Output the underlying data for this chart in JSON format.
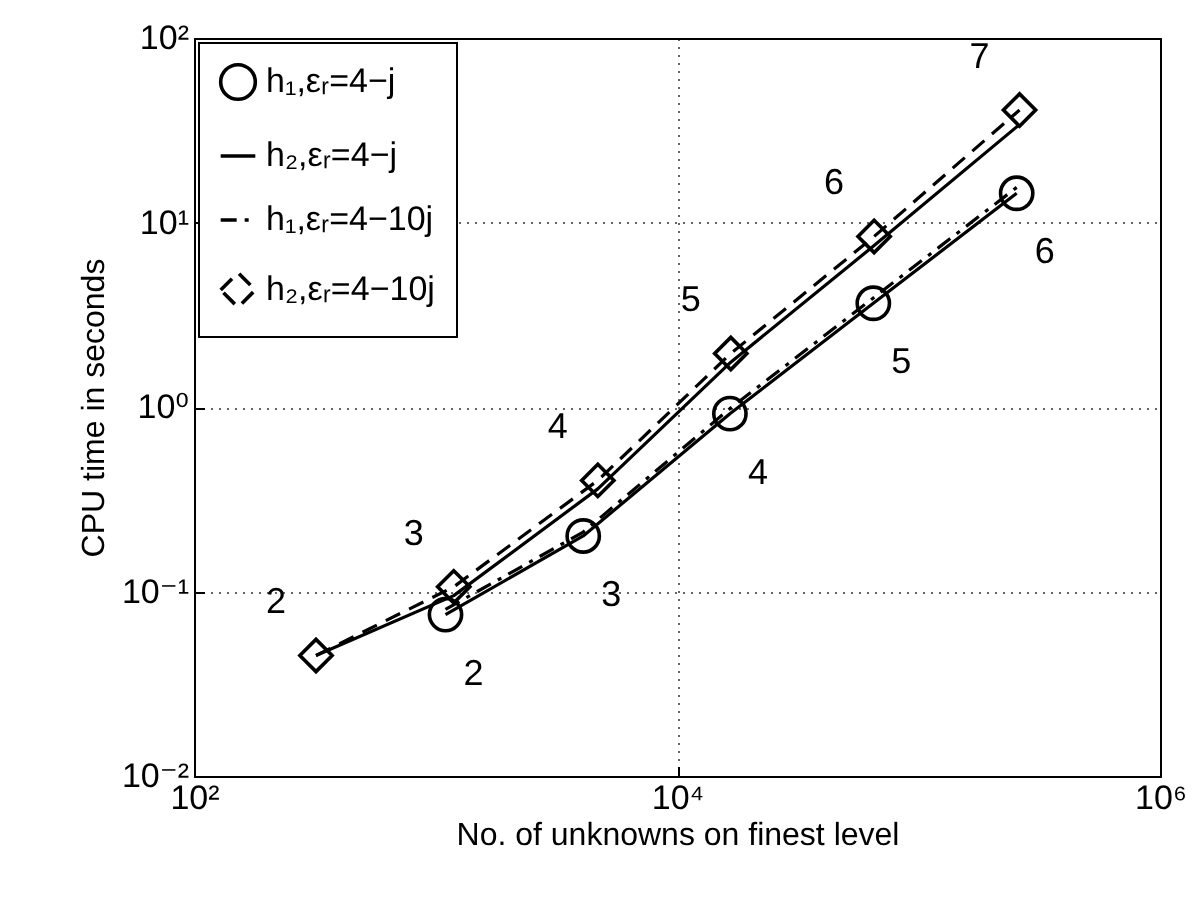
{
  "chart_data": {
    "type": "line",
    "xlabel": "No. of unknowns on finest level",
    "ylabel": "CPU time in seconds",
    "log": "xy",
    "grid": true,
    "legend": "top left",
    "xlim": [
      100,
      1000000
    ],
    "ylim": [
      0.01,
      100
    ],
    "xticks": [
      {
        "value": 100,
        "label": "10²"
      },
      {
        "value": 10000,
        "label": "10⁴"
      },
      {
        "value": 1000000,
        "label": "10⁶"
      }
    ],
    "yticks": [
      {
        "value": 0.01,
        "label": "10⁻²"
      },
      {
        "value": 0.1,
        "label": "10⁻¹"
      },
      {
        "value": 1,
        "label": "10⁰"
      },
      {
        "value": 10,
        "label": "10¹"
      },
      {
        "value": 100,
        "label": "10²"
      }
    ],
    "series": [
      {
        "name": "h₁,εᵣ=4−j",
        "color": "#000000",
        "marker": "circle",
        "line_style": "solid",
        "x": [
          1100,
          4090,
          16560,
          65000,
          255000
        ],
        "values": [
          0.075,
          0.2,
          0.92,
          3.65,
          14.4
        ]
      },
      {
        "name": "h₂,εᵣ=4−j",
        "color": "#000000",
        "marker": "none",
        "line_style": "solid",
        "x": [
          320,
          1190,
          4700,
          16700,
          65500,
          262000
        ],
        "values": [
          0.045,
          0.095,
          0.36,
          1.75,
          7.5,
          34
        ]
      },
      {
        "name": "h₁,εᵣ=4−10j",
        "color": "#000000",
        "marker": "none",
        "line_style": "dashdot",
        "x": [
          1100,
          4090,
          16560,
          65000,
          255000
        ],
        "values": [
          0.08,
          0.21,
          0.98,
          3.9,
          15.5
        ]
      },
      {
        "name": "h₂,εᵣ=4−10j",
        "color": "#000000",
        "marker": "diamond",
        "line_style": "dashed",
        "x": [
          320,
          1190,
          4700,
          16700,
          65500,
          262000
        ],
        "values": [
          0.045,
          0.106,
          0.4,
          1.95,
          8.4,
          40.7
        ]
      }
    ],
    "annotations": [
      {
        "text": "2",
        "x": 320,
        "y": 0.045
      },
      {
        "text": "3",
        "x": 1190,
        "y": 0.106
      },
      {
        "text": "4",
        "x": 4700,
        "y": 0.4
      },
      {
        "text": "5",
        "x": 16700,
        "y": 1.95
      },
      {
        "text": "6",
        "x": 65500,
        "y": 8.4
      },
      {
        "text": "7",
        "x": 262000,
        "y": 40.7
      },
      {
        "text": "2",
        "x": 1100,
        "y": 0.075
      },
      {
        "text": "3",
        "x": 4090,
        "y": 0.2
      },
      {
        "text": "4",
        "x": 16560,
        "y": 0.92
      },
      {
        "text": "5",
        "x": 65000,
        "y": 3.65
      },
      {
        "text": "6",
        "x": 255000,
        "y": 14.4
      }
    ]
  }
}
